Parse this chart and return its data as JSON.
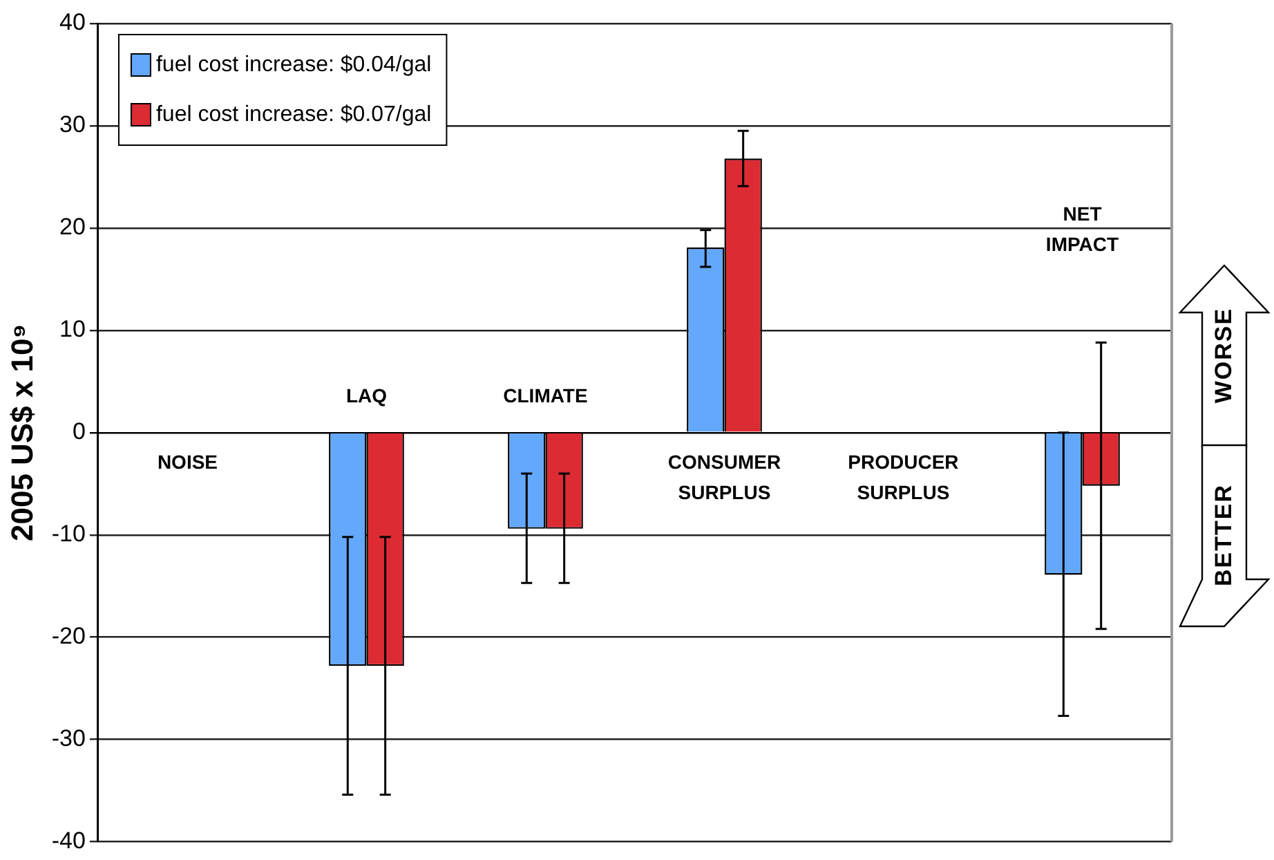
{
  "chart_data": {
    "type": "bar",
    "ylabel": "2005 US$ x 10⁹",
    "categories": [
      null,
      null,
      null,
      null,
      null,
      null
    ],
    "series": [
      {
        "name": "fuel cost increase: $0.04/gal",
        "color": "#63a8fb",
        "values": [
          0,
          -22.8,
          -9.4,
          18.1,
          0,
          -13.9
        ],
        "errors": [
          null,
          [
            -35.4,
            -10.2
          ],
          [
            -14.7,
            -4.0
          ],
          [
            16.2,
            19.8
          ],
          null,
          [
            -27.7,
            0
          ]
        ]
      },
      {
        "name": "fuel cost increase: $0.07/gal",
        "color": "#dc2b33",
        "values": [
          0,
          -22.8,
          -9.4,
          26.8,
          0,
          -5.2
        ],
        "errors": [
          null,
          [
            -35.4,
            -10.2
          ],
          [
            -14.7,
            -4.0
          ],
          [
            24.1,
            29.5
          ],
          null,
          [
            -19.2,
            8.8
          ]
        ]
      }
    ],
    "ylim": [
      -40,
      40
    ],
    "yticks": [
      -40,
      -30,
      -20,
      -10,
      0,
      10,
      20,
      30,
      40
    ],
    "grid": "y",
    "legend": "top left",
    "annotations": [
      "NOISE",
      "LAQ",
      "CLIMATE",
      "CONSUMER\nSURPLUS",
      "PRODUCER\nSURPLUS",
      "NET\nIMPACT",
      "WORSE",
      "BETTER"
    ]
  }
}
